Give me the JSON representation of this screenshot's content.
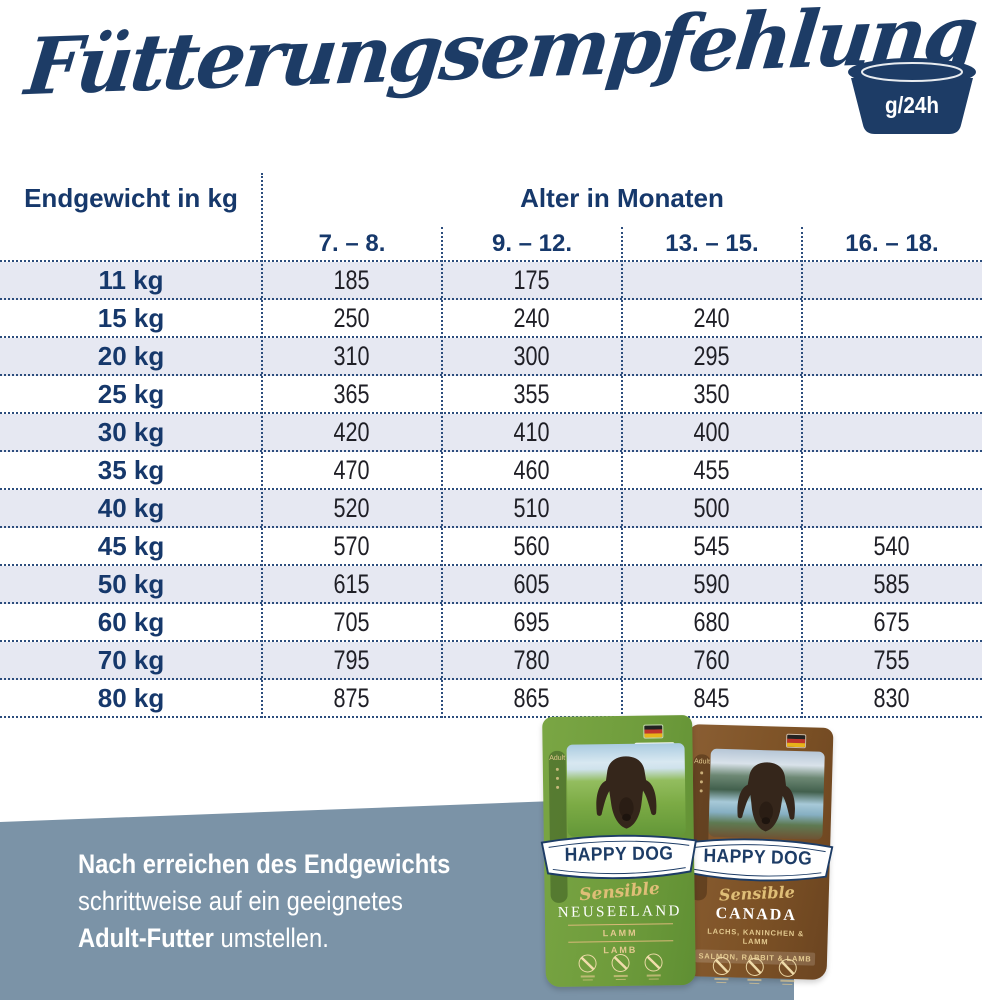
{
  "header": {
    "title": "Fütterungsempfehlung",
    "bowl_badge": "g/24h"
  },
  "table": {
    "weight_header": "Endgewicht in kg",
    "age_header": "Alter in Monaten",
    "age_columns": [
      "7. – 8.",
      "9. – 12.",
      "13. – 15.",
      "16. – 18."
    ],
    "rows": [
      {
        "weight": "11 kg",
        "values": [
          "185",
          "175",
          "",
          ""
        ]
      },
      {
        "weight": "15 kg",
        "values": [
          "250",
          "240",
          "240",
          ""
        ]
      },
      {
        "weight": "20 kg",
        "values": [
          "310",
          "300",
          "295",
          ""
        ]
      },
      {
        "weight": "25 kg",
        "values": [
          "365",
          "355",
          "350",
          ""
        ]
      },
      {
        "weight": "30 kg",
        "values": [
          "420",
          "410",
          "400",
          ""
        ]
      },
      {
        "weight": "35 kg",
        "values": [
          "470",
          "460",
          "455",
          ""
        ]
      },
      {
        "weight": "40 kg",
        "values": [
          "520",
          "510",
          "500",
          ""
        ]
      },
      {
        "weight": "45 kg",
        "values": [
          "570",
          "560",
          "545",
          "540"
        ]
      },
      {
        "weight": "50 kg",
        "values": [
          "615",
          "605",
          "590",
          "585"
        ]
      },
      {
        "weight": "60 kg",
        "values": [
          "705",
          "695",
          "680",
          "675"
        ]
      },
      {
        "weight": "70 kg",
        "values": [
          "795",
          "780",
          "760",
          "755"
        ]
      },
      {
        "weight": "80 kg",
        "values": [
          "875",
          "865",
          "845",
          "830"
        ]
      }
    ]
  },
  "note": {
    "line1": "Nach erreichen des Endgewichts",
    "line2": "schrittweise auf ein geeignetes",
    "line3_bold": "Adult-Futter",
    "line3_rest": " umstellen."
  },
  "products": {
    "brand": "HAPPY DOG",
    "line": "Sensible",
    "badge": "Adult",
    "items": [
      {
        "name": "NEUSEELAND",
        "variety_de": "LAMM",
        "variety_en": "LAMB"
      },
      {
        "name": "CANADA",
        "variety_de": "LACHS, KANINCHEN & LAMM",
        "variety_en": "SALMON, RABBIT & LAMB"
      }
    ]
  },
  "colors": {
    "navy": "#1c3c68",
    "table_stripe": "#e6e8f2",
    "dotted_line": "#2c4d7d",
    "footer_band": "#7b93a7",
    "bag_green": "#6f9c3c",
    "bag_brown": "#7d5226",
    "gold": "#cfa558"
  }
}
